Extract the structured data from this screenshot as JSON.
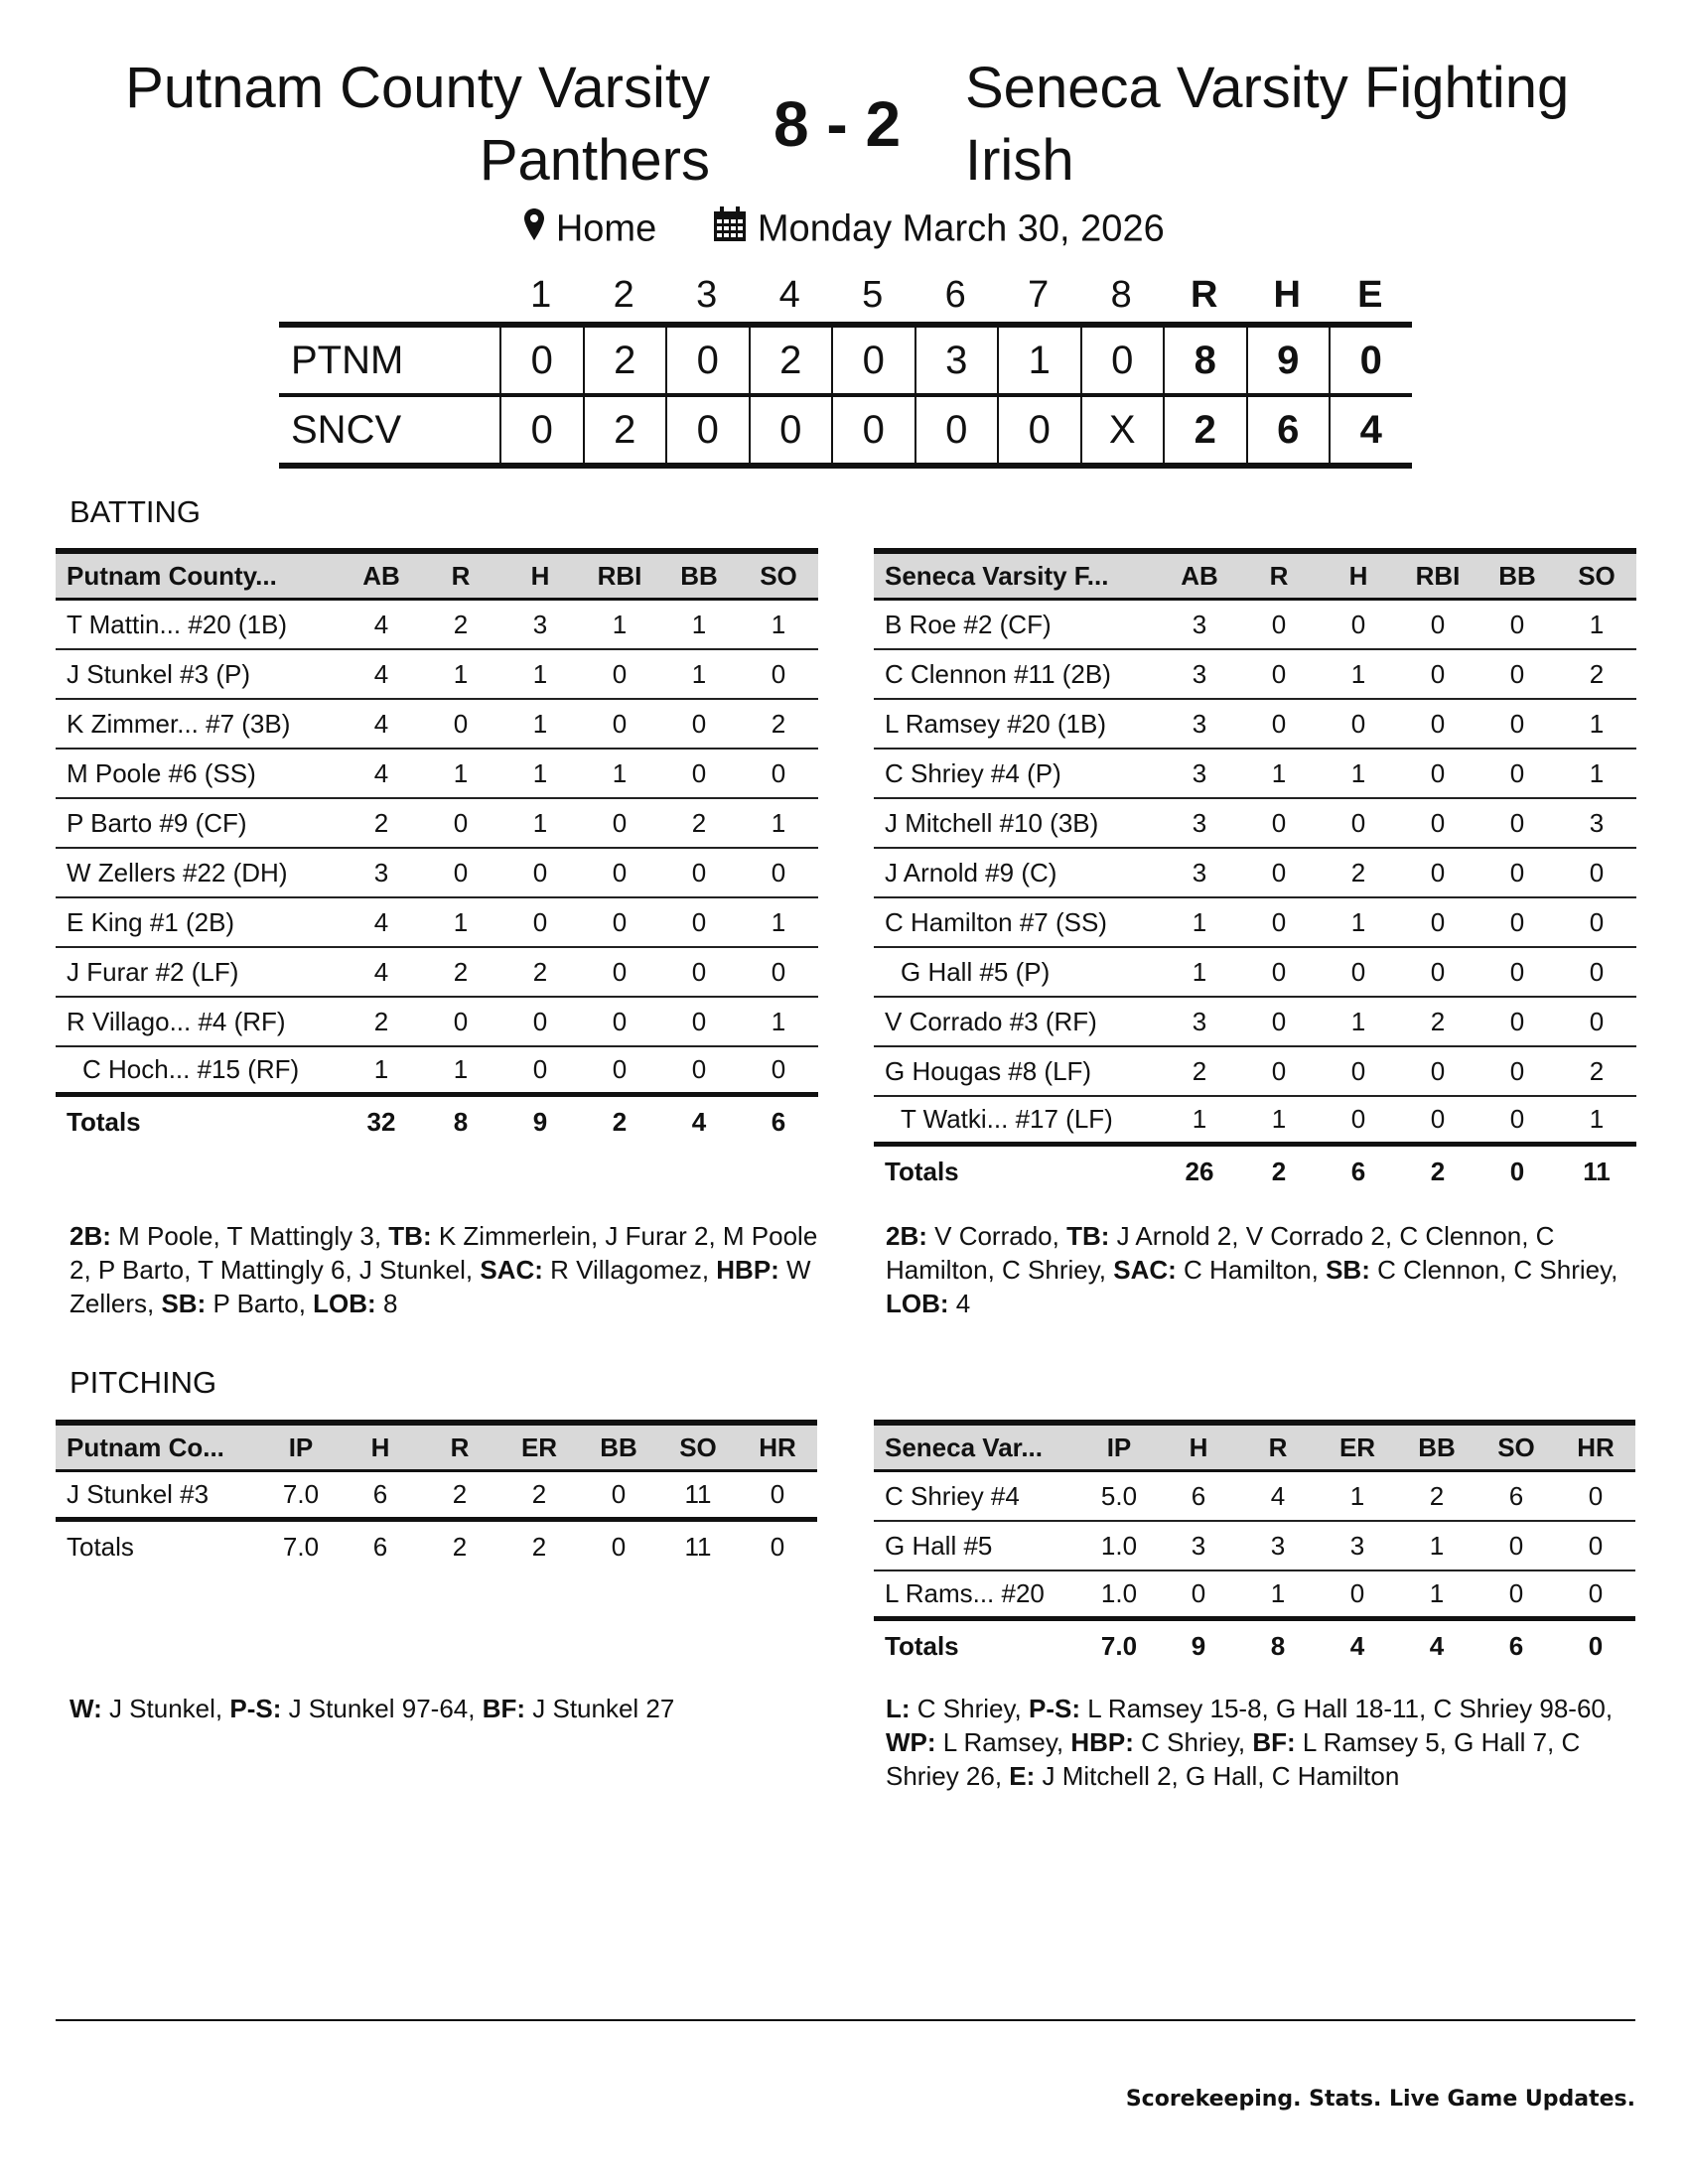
{
  "header": {
    "away_team": "Putnam County Varsity Panthers",
    "home_team": "Seneca Varsity Fighting Irish",
    "score": "8 - 2",
    "location_icon": "map-pin-icon",
    "location": "Home",
    "date_icon": "calendar-icon",
    "date": "Monday March 30, 2026"
  },
  "linescore": {
    "columns": [
      "1",
      "2",
      "3",
      "4",
      "5",
      "6",
      "7",
      "8",
      "R",
      "H",
      "E"
    ],
    "rows": [
      {
        "team": "PTNM",
        "values": [
          "0",
          "2",
          "0",
          "2",
          "0",
          "3",
          "1",
          "0",
          "8",
          "9",
          "0"
        ]
      },
      {
        "team": "SNCV",
        "values": [
          "0",
          "2",
          "0",
          "0",
          "0",
          "0",
          "0",
          "X",
          "2",
          "6",
          "4"
        ]
      }
    ]
  },
  "batting": {
    "label": "BATTING",
    "tables": [
      {
        "header": "Putnam County...",
        "columns": [
          "AB",
          "R",
          "H",
          "RBI",
          "BB",
          "SO"
        ],
        "players": [
          {
            "name": "T Mattin... #20 (1B)",
            "sub": false,
            "stats": [
              "4",
              "2",
              "3",
              "1",
              "1",
              "1"
            ]
          },
          {
            "name": "J Stunkel #3 (P)",
            "sub": false,
            "stats": [
              "4",
              "1",
              "1",
              "0",
              "1",
              "0"
            ]
          },
          {
            "name": "K Zimmer... #7 (3B)",
            "sub": false,
            "stats": [
              "4",
              "0",
              "1",
              "0",
              "0",
              "2"
            ]
          },
          {
            "name": "M Poole #6 (SS)",
            "sub": false,
            "stats": [
              "4",
              "1",
              "1",
              "1",
              "0",
              "0"
            ]
          },
          {
            "name": "P Barto #9 (CF)",
            "sub": false,
            "stats": [
              "2",
              "0",
              "1",
              "0",
              "2",
              "1"
            ]
          },
          {
            "name": "W Zellers #22 (DH)",
            "sub": false,
            "stats": [
              "3",
              "0",
              "0",
              "0",
              "0",
              "0"
            ]
          },
          {
            "name": "E King #1 (2B)",
            "sub": false,
            "stats": [
              "4",
              "1",
              "0",
              "0",
              "0",
              "1"
            ]
          },
          {
            "name": "J Furar #2 (LF)",
            "sub": false,
            "stats": [
              "4",
              "2",
              "2",
              "0",
              "0",
              "0"
            ]
          },
          {
            "name": "R Villago... #4 (RF)",
            "sub": false,
            "stats": [
              "2",
              "0",
              "0",
              "0",
              "0",
              "1"
            ]
          },
          {
            "name": "C Hoch... #15 (RF)",
            "sub": true,
            "stats": [
              "1",
              "1",
              "0",
              "0",
              "0",
              "0"
            ]
          }
        ],
        "totals": {
          "label": "Totals",
          "stats": [
            "32",
            "8",
            "9",
            "2",
            "4",
            "6"
          ]
        },
        "notes": [
          {
            "label": "2B:",
            "text": " M Poole, T Mattingly 3, "
          },
          {
            "label": "TB:",
            "text": " K Zimmerlein, J Furar 2, M Poole 2, P Barto, T Mattingly 6, J Stunkel, "
          },
          {
            "label": "SAC:",
            "text": " R Villagomez, "
          },
          {
            "label": "HBP:",
            "text": " W Zellers, "
          },
          {
            "label": "SB:",
            "text": " P Barto, "
          },
          {
            "label": "LOB:",
            "text": " 8"
          }
        ]
      },
      {
        "header": "Seneca Varsity F...",
        "columns": [
          "AB",
          "R",
          "H",
          "RBI",
          "BB",
          "SO"
        ],
        "players": [
          {
            "name": "B Roe #2 (CF)",
            "sub": false,
            "stats": [
              "3",
              "0",
              "0",
              "0",
              "0",
              "1"
            ]
          },
          {
            "name": "C Clennon #11 (2B)",
            "sub": false,
            "stats": [
              "3",
              "0",
              "1",
              "0",
              "0",
              "2"
            ]
          },
          {
            "name": "L Ramsey #20 (1B)",
            "sub": false,
            "stats": [
              "3",
              "0",
              "0",
              "0",
              "0",
              "1"
            ]
          },
          {
            "name": "C Shriey #4 (P)",
            "sub": false,
            "stats": [
              "3",
              "1",
              "1",
              "0",
              "0",
              "1"
            ]
          },
          {
            "name": "J Mitchell #10 (3B)",
            "sub": false,
            "stats": [
              "3",
              "0",
              "0",
              "0",
              "0",
              "3"
            ]
          },
          {
            "name": "J Arnold #9 (C)",
            "sub": false,
            "stats": [
              "3",
              "0",
              "2",
              "0",
              "0",
              "0"
            ]
          },
          {
            "name": "C Hamilton #7 (SS)",
            "sub": false,
            "stats": [
              "1",
              "0",
              "1",
              "0",
              "0",
              "0"
            ]
          },
          {
            "name": "G Hall #5 (P)",
            "sub": true,
            "stats": [
              "1",
              "0",
              "0",
              "0",
              "0",
              "0"
            ]
          },
          {
            "name": "V Corrado #3 (RF)",
            "sub": false,
            "stats": [
              "3",
              "0",
              "1",
              "2",
              "0",
              "0"
            ]
          },
          {
            "name": "G Hougas #8 (LF)",
            "sub": false,
            "stats": [
              "2",
              "0",
              "0",
              "0",
              "0",
              "2"
            ]
          },
          {
            "name": "T Watki... #17 (LF)",
            "sub": true,
            "stats": [
              "1",
              "1",
              "0",
              "0",
              "0",
              "1"
            ]
          }
        ],
        "totals": {
          "label": "Totals",
          "stats": [
            "26",
            "2",
            "6",
            "2",
            "0",
            "11"
          ]
        },
        "notes": [
          {
            "label": "2B:",
            "text": " V Corrado, "
          },
          {
            "label": "TB:",
            "text": " J Arnold 2, V Corrado 2, C Clennon, C Hamilton, C Shriey, "
          },
          {
            "label": "SAC:",
            "text": " C Hamilton, "
          },
          {
            "label": "SB:",
            "text": " C Clennon, C Shriey, "
          },
          {
            "label": "LOB:",
            "text": " 4"
          }
        ]
      }
    ]
  },
  "pitching": {
    "label": "PITCHING",
    "tables": [
      {
        "header": "Putnam Co...",
        "columns": [
          "IP",
          "H",
          "R",
          "ER",
          "BB",
          "SO",
          "HR"
        ],
        "players": [
          {
            "name": "J Stunkel #3",
            "stats": [
              "7.0",
              "6",
              "2",
              "2",
              "0",
              "11",
              "0"
            ]
          }
        ],
        "totals": {
          "label": "Totals",
          "bold": false,
          "stats": [
            "7.0",
            "6",
            "2",
            "2",
            "0",
            "11",
            "0"
          ]
        },
        "notes": [
          {
            "label": "W:",
            "text": " J Stunkel, "
          },
          {
            "label": "P-S:",
            "text": " J Stunkel 97-64, "
          },
          {
            "label": "BF:",
            "text": " J Stunkel 27"
          }
        ]
      },
      {
        "header": "Seneca Var...",
        "columns": [
          "IP",
          "H",
          "R",
          "ER",
          "BB",
          "SO",
          "HR"
        ],
        "players": [
          {
            "name": "C Shriey #4",
            "stats": [
              "5.0",
              "6",
              "4",
              "1",
              "2",
              "6",
              "0"
            ]
          },
          {
            "name": "G Hall #5",
            "stats": [
              "1.0",
              "3",
              "3",
              "3",
              "1",
              "0",
              "0"
            ]
          },
          {
            "name": "L Rams... #20",
            "stats": [
              "1.0",
              "0",
              "1",
              "0",
              "1",
              "0",
              "0"
            ]
          }
        ],
        "totals": {
          "label": "Totals",
          "bold": true,
          "stats": [
            "7.0",
            "9",
            "8",
            "4",
            "4",
            "6",
            "0"
          ]
        },
        "notes": [
          {
            "label": "L:",
            "text": " C Shriey, "
          },
          {
            "label": "P-S:",
            "text": " L Ramsey 15-8, G Hall 18-11, C Shriey 98-60, "
          },
          {
            "label": "WP:",
            "text": " L Ramsey, "
          },
          {
            "label": "HBP:",
            "text": " C Shriey, "
          },
          {
            "label": "BF:",
            "text": " L Ramsey 5, G Hall 7, C Shriey 26, "
          },
          {
            "label": "E:",
            "text": " J Mitchell 2, G Hall, C Hamilton"
          }
        ]
      }
    ]
  },
  "footer": {
    "tagline": "Scorekeeping. Stats. Live Game Updates."
  }
}
